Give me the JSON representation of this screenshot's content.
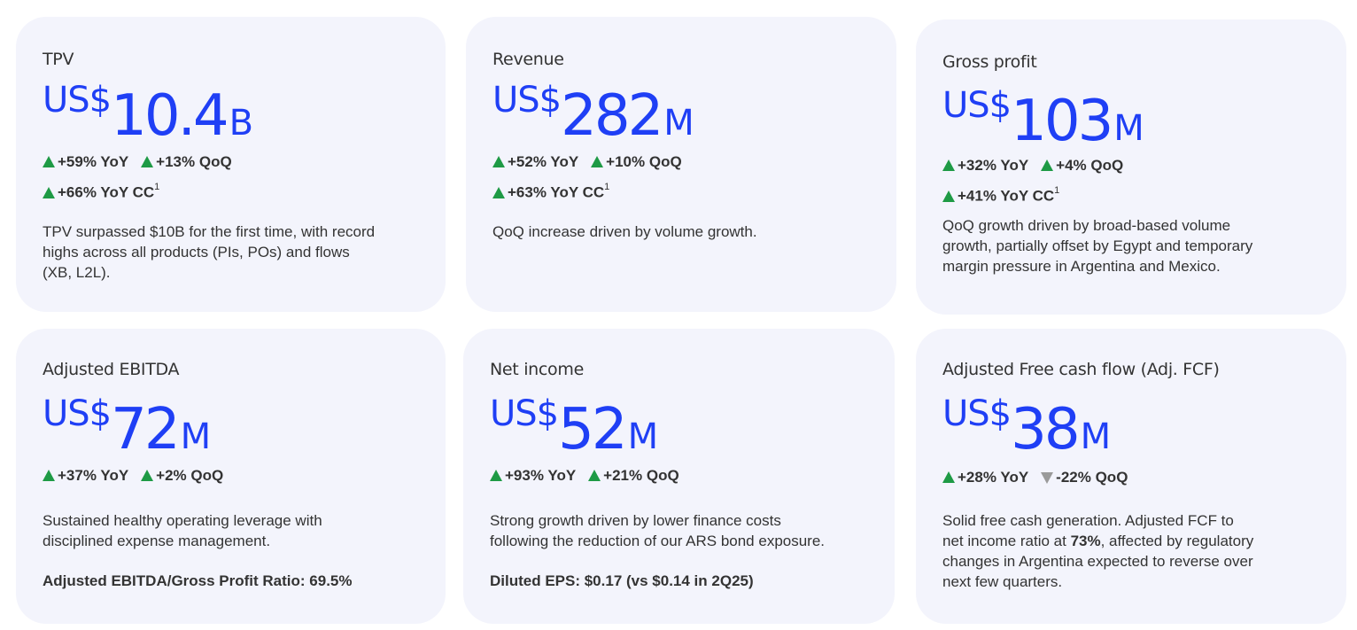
{
  "cards": [
    {
      "title": "TPV",
      "currency": "US$",
      "value": "10.4",
      "unit": "B",
      "metric_lines": [
        [
          {
            "dir": "up",
            "text": "+59% YoY",
            "sup": ""
          },
          {
            "dir": "up",
            "text": "+13% QoQ",
            "sup": ""
          }
        ],
        [
          {
            "dir": "up",
            "text": "+66% YoY CC",
            "sup": "1"
          }
        ]
      ],
      "description": [
        "TPV surpassed $10B for the first time, with record",
        "highs across all products (PIs, POs) and flows",
        "(XB, L2L)."
      ],
      "note": ""
    },
    {
      "title": "Revenue",
      "currency": "US$",
      "value": "282",
      "unit": "M",
      "metric_lines": [
        [
          {
            "dir": "up",
            "text": "+52% YoY",
            "sup": ""
          },
          {
            "dir": "up",
            "text": "+10% QoQ",
            "sup": ""
          }
        ],
        [
          {
            "dir": "up",
            "text": "+63% YoY CC",
            "sup": "1"
          }
        ]
      ],
      "description": [
        "QoQ increase driven by volume growth."
      ],
      "note": ""
    },
    {
      "title": "Gross profit",
      "currency": "US$",
      "value": "103",
      "unit": "M",
      "metric_lines": [
        [
          {
            "dir": "up",
            "text": "+32% YoY",
            "sup": ""
          },
          {
            "dir": "up",
            "text": "+4% QoQ",
            "sup": ""
          }
        ],
        [
          {
            "dir": "up",
            "text": "+41% YoY CC",
            "sup": "1"
          }
        ]
      ],
      "description": [
        "QoQ growth driven by broad-based volume",
        "growth, partially offset by Egypt and temporary",
        "margin pressure in Argentina and Mexico."
      ],
      "note": ""
    },
    {
      "title": "Adjusted EBITDA",
      "currency": "US$",
      "value": "72",
      "unit": "M",
      "metric_lines": [
        [
          {
            "dir": "up",
            "text": "+37% YoY",
            "sup": ""
          },
          {
            "dir": "up",
            "text": "+2% QoQ",
            "sup": ""
          }
        ]
      ],
      "description": [
        "Sustained healthy operating leverage with",
        "disciplined expense management."
      ],
      "note": "Adjusted EBITDA/Gross Profit Ratio: 69.5%"
    },
    {
      "title": "Net income",
      "currency": "US$",
      "value": "52",
      "unit": "M",
      "metric_lines": [
        [
          {
            "dir": "up",
            "text": "+93% YoY",
            "sup": ""
          },
          {
            "dir": "up",
            "text": "+21% QoQ",
            "sup": ""
          }
        ]
      ],
      "description": [
        "Strong growth driven by lower finance costs",
        "following the reduction of our ARS bond exposure."
      ],
      "note": "Diluted EPS: $0.17 (vs $0.14 in 2Q25)"
    },
    {
      "title": "Adjusted Free cash flow (Adj. FCF)",
      "currency": "US$",
      "value": "38",
      "unit": "M",
      "metric_lines": [
        [
          {
            "dir": "up",
            "text": "+28% YoY",
            "sup": ""
          },
          {
            "dir": "down",
            "text": "-22% QoQ",
            "sup": ""
          }
        ]
      ],
      "description_parts": [
        {
          "text": "Solid free cash generation. Adjusted FCF to",
          "bold": false,
          "br": true
        },
        {
          "text": "net income ratio at ",
          "bold": false,
          "br": false
        },
        {
          "text": "73%",
          "bold": true,
          "br": false
        },
        {
          "text": ", affected by regulatory",
          "bold": false,
          "br": true
        },
        {
          "text": "changes in Argentina expected to reverse over",
          "bold": false,
          "br": true
        },
        {
          "text": "next few quarters.",
          "bold": false,
          "br": false
        }
      ],
      "note": ""
    }
  ],
  "colors": {
    "card_bg": "#f3f4fc",
    "value_blue": "#1f3ff5",
    "up_green": "#1e9a45",
    "down_gray": "#9a9a9a",
    "text": "#333333"
  }
}
